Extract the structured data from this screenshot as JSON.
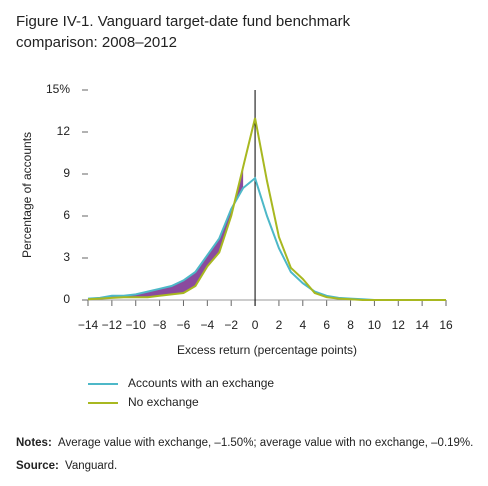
{
  "chart_data": {
    "type": "line",
    "title": [
      "Figure IV-1. Vanguard target-date fund benchmark",
      "comparison: 2008–2012"
    ],
    "x_label": "Excess return (percentage points)",
    "y_label": "Percentage of accounts",
    "x": [
      -14,
      -13,
      -12,
      -11,
      -10,
      -9,
      -8,
      -7,
      -6,
      -5,
      -4,
      -3,
      -2,
      -1,
      0,
      1,
      2,
      3,
      4,
      5,
      6,
      7,
      8,
      9,
      10,
      11,
      12,
      13,
      14,
      15,
      16
    ],
    "series": [
      {
        "name": "Accounts with an exchange",
        "color": "#4db8c8",
        "values": [
          0.1,
          0.15,
          0.3,
          0.3,
          0.4,
          0.6,
          0.8,
          1.0,
          1.4,
          2.0,
          3.2,
          4.4,
          6.5,
          8.0,
          8.7,
          6.0,
          3.7,
          2.0,
          1.2,
          0.6,
          0.3,
          0.15,
          0.1,
          0.05,
          0,
          0,
          0,
          0,
          0,
          0,
          0
        ]
      },
      {
        "name": "No exchange",
        "color": "#a8b820",
        "values": [
          0.05,
          0.1,
          0.15,
          0.2,
          0.2,
          0.2,
          0.3,
          0.4,
          0.5,
          1.0,
          2.4,
          3.4,
          6.0,
          9.5,
          13.0,
          8.5,
          4.5,
          2.3,
          1.5,
          0.5,
          0.2,
          0.1,
          0.05,
          0,
          0,
          0,
          0,
          0,
          0,
          0,
          0
        ]
      }
    ],
    "fill_between_color": "#8a4a9e",
    "xlim": [
      -14,
      16
    ],
    "xticks": [
      {
        "value": -14,
        "label": "−14"
      },
      {
        "value": -12,
        "label": "−12"
      },
      {
        "value": -10,
        "label": "−10"
      },
      {
        "value": -8,
        "label": "−8"
      },
      {
        "value": -6,
        "label": "−6"
      },
      {
        "value": -4,
        "label": "−4"
      },
      {
        "value": -2,
        "label": "−2"
      },
      0,
      2,
      4,
      6,
      8,
      10,
      12,
      14,
      16
    ],
    "ylim": [
      0,
      15
    ],
    "yticks": [
      0,
      3,
      6,
      9,
      12,
      {
        "value": 15,
        "label": "15%"
      }
    ],
    "grid": false,
    "notes_label": "Notes:",
    "notes": "Average value with exchange, –1.50%; average value with no exchange, –0.19%.",
    "source_label": "Source:",
    "source": "Vanguard."
  }
}
